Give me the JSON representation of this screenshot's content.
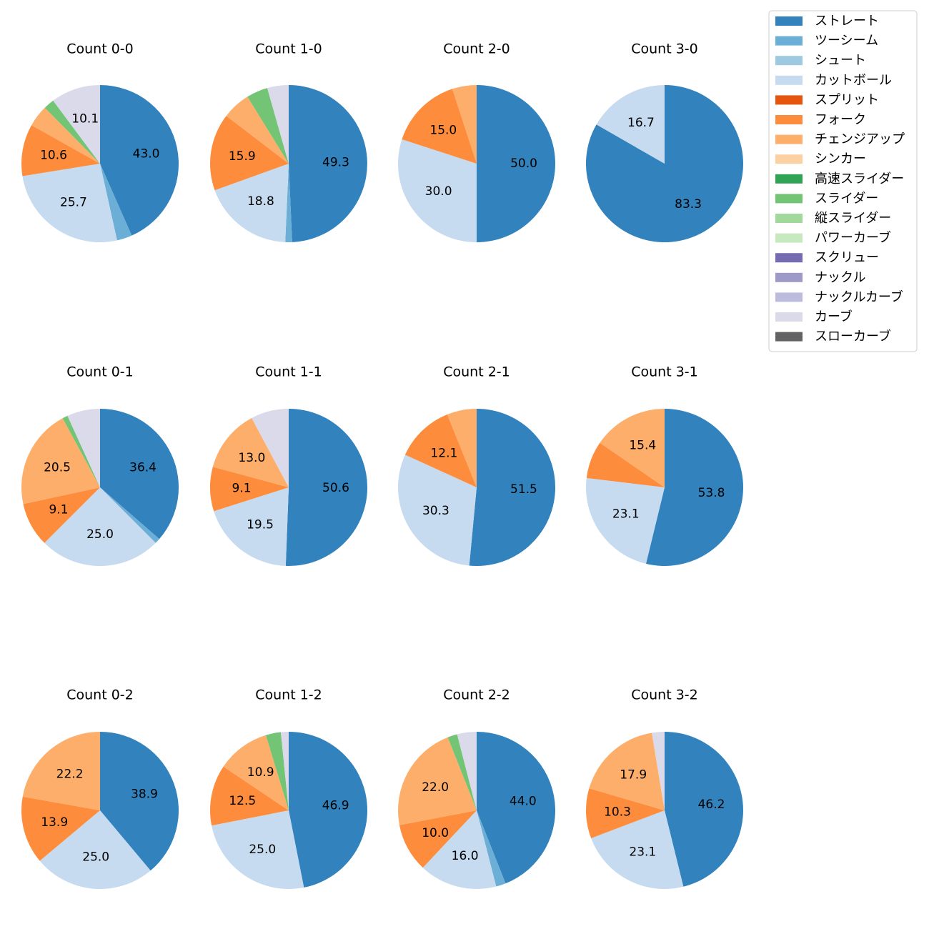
{
  "chart_data": {
    "type": "pie",
    "start_angle": "12 o'clock",
    "direction": "clockwise",
    "categories": [
      "ストレート",
      "ツーシーム",
      "シュート",
      "カットボール",
      "スプリット",
      "フォーク",
      "チェンジアップ",
      "シンカー",
      "高速スライダー",
      "スライダー",
      "縦スライダー",
      "パワーカーブ",
      "スクリュー",
      "ナックル",
      "ナックルカーブ",
      "カーブ",
      "スローカーブ"
    ],
    "colors": [
      "#3182bd",
      "#6baed6",
      "#9ecae1",
      "#c6dbef",
      "#e6550d",
      "#fd8d3c",
      "#fdae6b",
      "#fdd0a2",
      "#31a354",
      "#74c476",
      "#a1d99b",
      "#c7e9c0",
      "#756bb1",
      "#9e9ac8",
      "#bcbddc",
      "#dadaeb",
      "#636363"
    ],
    "label_threshold": 9,
    "legend_position": "top-right",
    "pies": [
      {
        "title": "Count 0-0",
        "values": [
          43.0,
          3.1,
          0,
          25.7,
          0,
          10.6,
          4.4,
          0,
          0,
          2.2,
          0,
          0,
          0,
          0,
          0,
          10.1,
          0
        ]
      },
      {
        "title": "Count 1-0",
        "values": [
          49.3,
          1.4,
          0,
          18.8,
          0,
          15.9,
          5.8,
          0,
          0,
          4.4,
          0,
          0,
          0,
          0,
          0,
          4.4,
          0
        ]
      },
      {
        "title": "Count 2-0",
        "values": [
          50.0,
          0,
          0,
          30.0,
          0,
          15.0,
          5.0,
          0,
          0,
          0,
          0,
          0,
          0,
          0,
          0,
          0,
          0
        ]
      },
      {
        "title": "Count 3-0",
        "values": [
          83.3,
          0,
          0,
          16.7,
          0,
          0,
          0,
          0,
          0,
          0,
          0,
          0,
          0,
          0,
          0,
          0,
          0
        ]
      },
      {
        "title": "Count 0-1",
        "values": [
          36.4,
          1.1,
          0,
          25.0,
          0,
          9.1,
          20.5,
          0,
          0,
          1.1,
          0,
          0,
          0,
          0,
          0,
          6.8,
          0
        ]
      },
      {
        "title": "Count 1-1",
        "values": [
          50.6,
          0,
          0,
          19.5,
          0,
          9.1,
          13.0,
          0,
          0,
          0,
          0,
          0,
          0,
          0,
          0,
          7.8,
          0
        ]
      },
      {
        "title": "Count 2-1",
        "values": [
          51.5,
          0,
          0,
          30.3,
          0,
          12.1,
          6.1,
          0,
          0,
          0,
          0,
          0,
          0,
          0,
          0,
          0,
          0
        ]
      },
      {
        "title": "Count 3-1",
        "values": [
          53.8,
          0,
          0,
          23.1,
          0,
          7.7,
          15.4,
          0,
          0,
          0,
          0,
          0,
          0,
          0,
          0,
          0,
          0
        ]
      },
      {
        "title": "Count 0-2",
        "values": [
          38.9,
          0,
          0,
          25.0,
          0,
          13.9,
          22.2,
          0,
          0,
          0,
          0,
          0,
          0,
          0,
          0,
          0,
          0
        ]
      },
      {
        "title": "Count 1-2",
        "values": [
          46.9,
          0,
          0,
          25.0,
          0,
          12.5,
          10.9,
          0,
          0,
          3.1,
          0,
          0,
          0,
          0,
          0,
          1.6,
          0
        ]
      },
      {
        "title": "Count 2-2",
        "values": [
          44.0,
          2.0,
          0,
          16.0,
          0,
          10.0,
          22.0,
          0,
          0,
          2.0,
          0,
          0,
          0,
          0,
          0,
          4.0,
          0
        ]
      },
      {
        "title": "Count 3-2",
        "values": [
          46.2,
          0,
          0,
          23.1,
          0,
          10.3,
          17.9,
          0,
          0,
          0,
          0,
          0,
          0,
          0,
          0,
          2.6,
          0
        ]
      }
    ]
  }
}
